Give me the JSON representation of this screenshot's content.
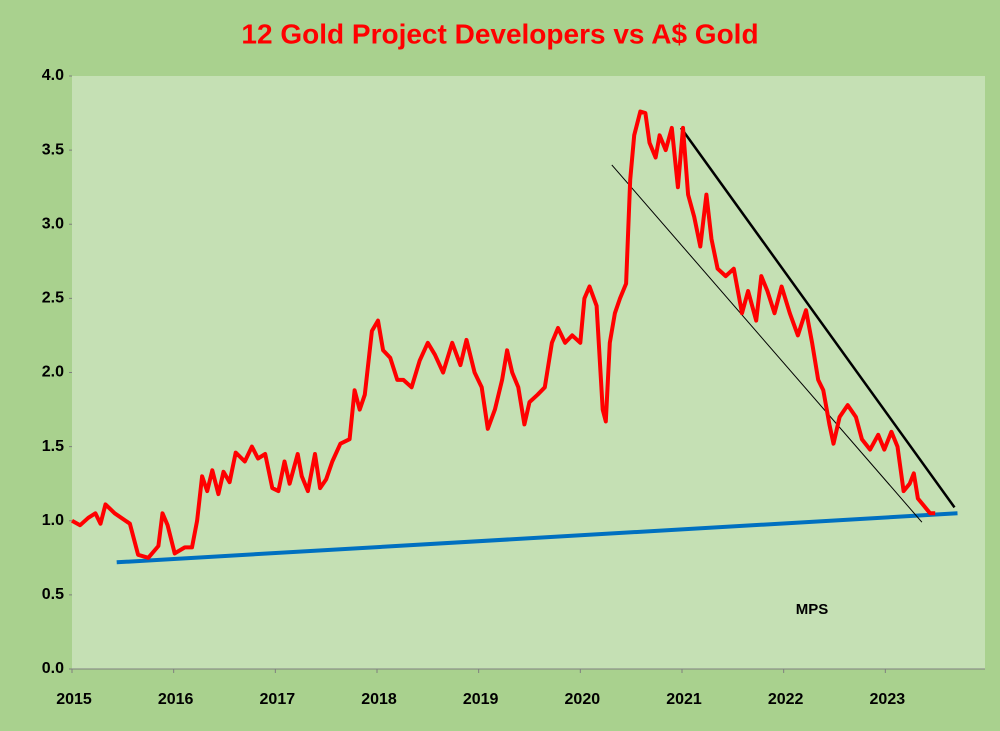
{
  "chart_data": {
    "type": "line",
    "title": "12 Gold Project Developers vs A$ Gold",
    "annotation": "MPS",
    "xlim": [
      2015,
      2024
    ],
    "xticks": [
      2015,
      2016,
      2017,
      2018,
      2019,
      2020,
      2021,
      2022,
      2023
    ],
    "ylim": [
      0,
      4
    ],
    "yticks": [
      {
        "value": 0,
        "label": "0.0"
      },
      0.5,
      {
        "value": 1,
        "label": "1.0"
      },
      1.5,
      {
        "value": 2,
        "label": "2.0"
      },
      2.5,
      {
        "value": 3,
        "label": "3.0"
      },
      3.5,
      {
        "value": 4,
        "label": "4.0"
      }
    ],
    "grid": false,
    "series": [
      {
        "color": "#ff0000",
        "x": [
          2015.0,
          2015.08,
          2015.16,
          2015.23,
          2015.28,
          2015.33,
          2015.42,
          2015.57,
          2015.65,
          2015.75,
          2015.85,
          2015.89,
          2015.94,
          2016.01,
          2016.11,
          2016.18,
          2016.23,
          2016.28,
          2016.33,
          2016.38,
          2016.44,
          2016.49,
          2016.55,
          2016.61,
          2016.7,
          2016.77,
          2016.83,
          2016.9,
          2016.97,
          2017.03,
          2017.09,
          2017.14,
          2017.22,
          2017.26,
          2017.32,
          2017.39,
          2017.44,
          2017.5,
          2017.56,
          2017.64,
          2017.73,
          2017.78,
          2017.83,
          2017.88,
          2017.95,
          2018.01,
          2018.06,
          2018.13,
          2018.2,
          2018.26,
          2018.34,
          2018.42,
          2018.5,
          2018.57,
          2018.65,
          2018.74,
          2018.82,
          2018.88,
          2018.96,
          2019.03,
          2019.09,
          2019.16,
          2019.23,
          2019.28,
          2019.33,
          2019.39,
          2019.45,
          2019.5,
          2019.58,
          2019.65,
          2019.72,
          2019.78,
          2019.85,
          2019.92,
          2020.0,
          2020.04,
          2020.09,
          2020.16,
          2020.22,
          2020.25,
          2020.29,
          2020.34,
          2020.39,
          2020.45,
          2020.49,
          2020.53,
          2020.59,
          2020.64,
          2020.68,
          2020.74,
          2020.78,
          2020.84,
          2020.9,
          2020.96,
          2021.01,
          2021.06,
          2021.12,
          2021.18,
          2021.24,
          2021.29,
          2021.35,
          2021.43,
          2021.51,
          2021.59,
          2021.65,
          2021.73,
          2021.78,
          2021.84,
          2021.91,
          2021.98,
          2022.06,
          2022.14,
          2022.22,
          2022.28,
          2022.34,
          2022.39,
          2022.45,
          2022.49,
          2022.55,
          2022.63,
          2022.71,
          2022.77,
          2022.85,
          2022.93,
          2022.99,
          2023.06,
          2023.12,
          2023.18,
          2023.24,
          2023.28,
          2023.32,
          2023.38,
          2023.44,
          2023.49
        ],
        "values": [
          1.0,
          0.97,
          1.02,
          1.05,
          0.98,
          1.11,
          1.05,
          0.98,
          0.77,
          0.75,
          0.83,
          1.05,
          0.97,
          0.78,
          0.82,
          0.82,
          1.0,
          1.3,
          1.2,
          1.34,
          1.18,
          1.33,
          1.26,
          1.46,
          1.4,
          1.5,
          1.42,
          1.45,
          1.22,
          1.2,
          1.4,
          1.25,
          1.45,
          1.3,
          1.2,
          1.45,
          1.22,
          1.28,
          1.4,
          1.52,
          1.55,
          1.88,
          1.75,
          1.85,
          2.28,
          2.35,
          2.15,
          2.1,
          1.95,
          1.95,
          1.9,
          2.08,
          2.2,
          2.12,
          2.0,
          2.2,
          2.05,
          2.22,
          2.0,
          1.9,
          1.62,
          1.75,
          1.95,
          2.15,
          2.0,
          1.9,
          1.65,
          1.8,
          1.85,
          1.9,
          2.2,
          2.3,
          2.2,
          2.25,
          2.2,
          2.5,
          2.58,
          2.45,
          1.75,
          1.67,
          2.2,
          2.4,
          2.5,
          2.6,
          3.3,
          3.6,
          3.76,
          3.75,
          3.55,
          3.45,
          3.6,
          3.5,
          3.65,
          3.25,
          3.65,
          3.2,
          3.05,
          2.85,
          3.2,
          2.9,
          2.7,
          2.65,
          2.7,
          2.4,
          2.55,
          2.35,
          2.65,
          2.55,
          2.4,
          2.58,
          2.4,
          2.25,
          2.42,
          2.2,
          1.95,
          1.88,
          1.65,
          1.52,
          1.7,
          1.78,
          1.7,
          1.55,
          1.48,
          1.58,
          1.48,
          1.6,
          1.5,
          1.2,
          1.25,
          1.32,
          1.15,
          1.1,
          1.05,
          1.05
        ]
      }
    ],
    "trendlines": [
      {
        "color": "#0070c0",
        "x": [
          2015.44,
          2023.71
        ],
        "values": [
          0.72,
          1.05
        ]
      },
      {
        "color": "#000000",
        "x": [
          2020.99,
          2023.68
        ],
        "values": [
          3.65,
          1.09
        ]
      },
      {
        "color": "#000000",
        "x": [
          2020.31,
          2023.36
        ],
        "values": [
          3.4,
          0.99
        ]
      }
    ]
  }
}
